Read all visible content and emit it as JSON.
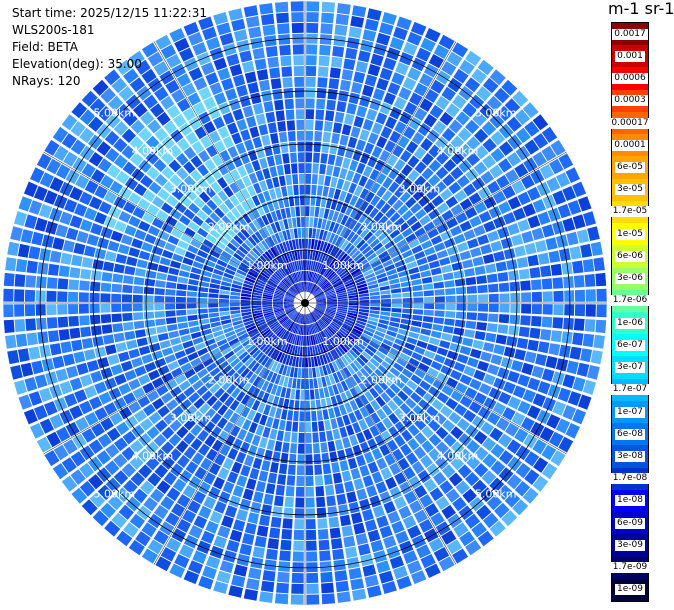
{
  "header": {
    "start_time": "Start time: 2025/12/15 11:22:31",
    "device": "WLS200s-181",
    "field": "Field: BETA",
    "elevation": "Elevation(deg): 35.00",
    "nrays": "NRays: 120"
  },
  "chart_data": {
    "type": "heatmap",
    "subtype": "ppi-polar",
    "field": "BETA",
    "elevation_deg": 35.0,
    "n_rays": 120,
    "range_rings_km": [
      1,
      2,
      3,
      4,
      5
    ],
    "max_range_km": 5.7,
    "range_labels": [
      "1.00km",
      "2.00km",
      "3.00km",
      "4.00km",
      "5.00km"
    ],
    "colorbar": {
      "title": "m-1 sr-1",
      "ticks": [
        "0.0017",
        "0.001",
        "0.0006",
        "0.0003",
        "0.00017",
        "0.0001",
        "6e-05",
        "3e-05",
        "1.7e-05",
        "1e-05",
        "6e-06",
        "3e-06",
        "1.7e-06",
        "1e-06",
        "6e-07",
        "3e-07",
        "1.7e-07",
        "1e-07",
        "6e-08",
        "3e-08",
        "1.7e-08",
        "1e-08",
        "6e-09",
        "3e-09",
        "1.7e-09",
        "1e-09"
      ],
      "colors": [
        "#8b0000",
        "#c80000",
        "#ff0000",
        "#ff4000",
        "#ff6600",
        "#ff8c00",
        "#ffa500",
        "#ffc000",
        "#ffdd00",
        "#ffff00",
        "#ccff33",
        "#99ff66",
        "#66ff99",
        "#33ffcc",
        "#00ffff",
        "#00ddff",
        "#00bbff",
        "#0099ff",
        "#0077ee",
        "#0055dd",
        "#0033cc",
        "#0000ff",
        "#0000cc",
        "#000099",
        "#000066",
        "#00003c"
      ]
    }
  },
  "colors": {
    "background": "#ffffff",
    "ring_line": "#000000",
    "grid_line": "#000000",
    "label_text": "#ffffff"
  }
}
